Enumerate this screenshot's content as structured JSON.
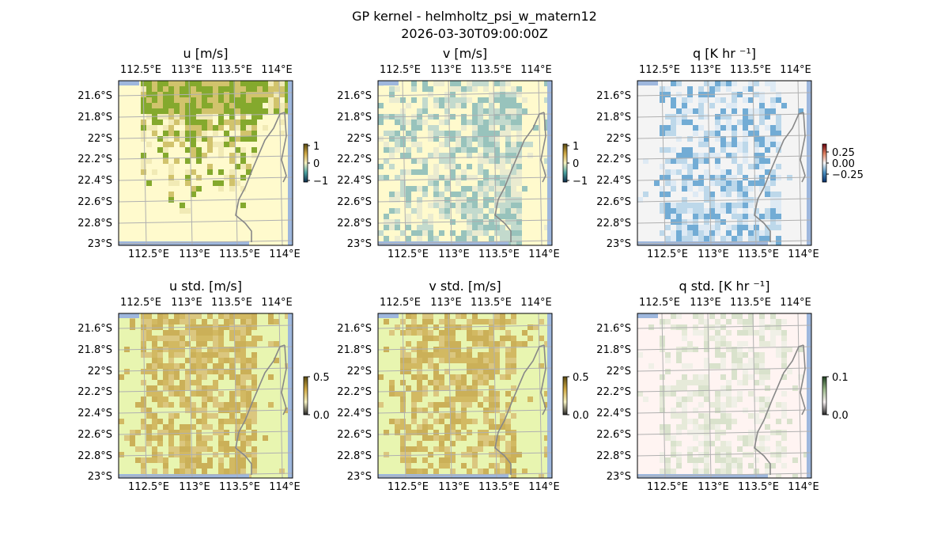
{
  "figure": {
    "title_line1": "GP kernel - helmholtz_psi_w_matern12",
    "title_line2": "2026-03-30T09:00:00Z"
  },
  "axes": {
    "lon_ticks": [
      "112.5°E",
      "113°E",
      "113.5°E",
      "114°E"
    ],
    "lat_ticks": [
      "21.6°S",
      "21.8°S",
      "22°S",
      "22.2°S",
      "22.4°S",
      "22.6°S",
      "22.8°S",
      "23°S"
    ]
  },
  "chart_data": [
    {
      "type": "heatmap",
      "title": "u [m/s]",
      "colorbar": {
        "ticks": [
          "1",
          "0",
          "−1"
        ],
        "range": [
          -1,
          1
        ]
      },
      "colors": {
        "background": "#fffacd",
        "light": "#efe6b0",
        "mid": "#c9b85a",
        "dark": "#6f9a10"
      }
    },
    {
      "type": "heatmap",
      "title": "v [m/s]",
      "colorbar": {
        "ticks": [
          "1",
          "0",
          "−1"
        ],
        "range": [
          -1,
          1
        ]
      },
      "colors": {
        "background": "#fffacd",
        "light": "#e6e7d0",
        "mid": "#b9d3cd",
        "dark": "#86b9b8"
      }
    },
    {
      "type": "heatmap",
      "title": "q [K hr ⁻¹]",
      "colorbar": {
        "ticks": [
          "0.25",
          "0.00",
          "−0.25"
        ],
        "range": [
          -0.35,
          0.35
        ]
      },
      "colors": {
        "background": "#f4f4f4",
        "light": "#d9e7f3",
        "mid": "#b3d2e8",
        "dark": "#5b9fcf"
      }
    },
    {
      "type": "heatmap",
      "title": "u std. [m/s]",
      "colorbar": {
        "ticks": [
          "0.5",
          "0.0"
        ],
        "range": [
          0,
          0.5
        ]
      },
      "colors": {
        "background": "#e8f5b0",
        "light": "#d9c27a",
        "mid": "#cfb35a",
        "dark": "#c8a94f"
      }
    },
    {
      "type": "heatmap",
      "title": "v std. [m/s]",
      "colorbar": {
        "ticks": [
          "0.5",
          "0.0"
        ],
        "range": [
          0,
          0.5
        ]
      },
      "colors": {
        "background": "#e8f5b0",
        "light": "#d9c27a",
        "mid": "#cfb35a",
        "dark": "#c8a94f"
      }
    },
    {
      "type": "heatmap",
      "title": "q std. [K hr ⁻¹]",
      "colorbar": {
        "ticks": [
          "0.1",
          "0.0"
        ],
        "range": [
          0,
          0.1
        ]
      },
      "colors": {
        "background": "#fff4f2",
        "light": "#eef0e6",
        "mid": "#e3e9d6",
        "dark": "#d5e0c8"
      }
    }
  ]
}
